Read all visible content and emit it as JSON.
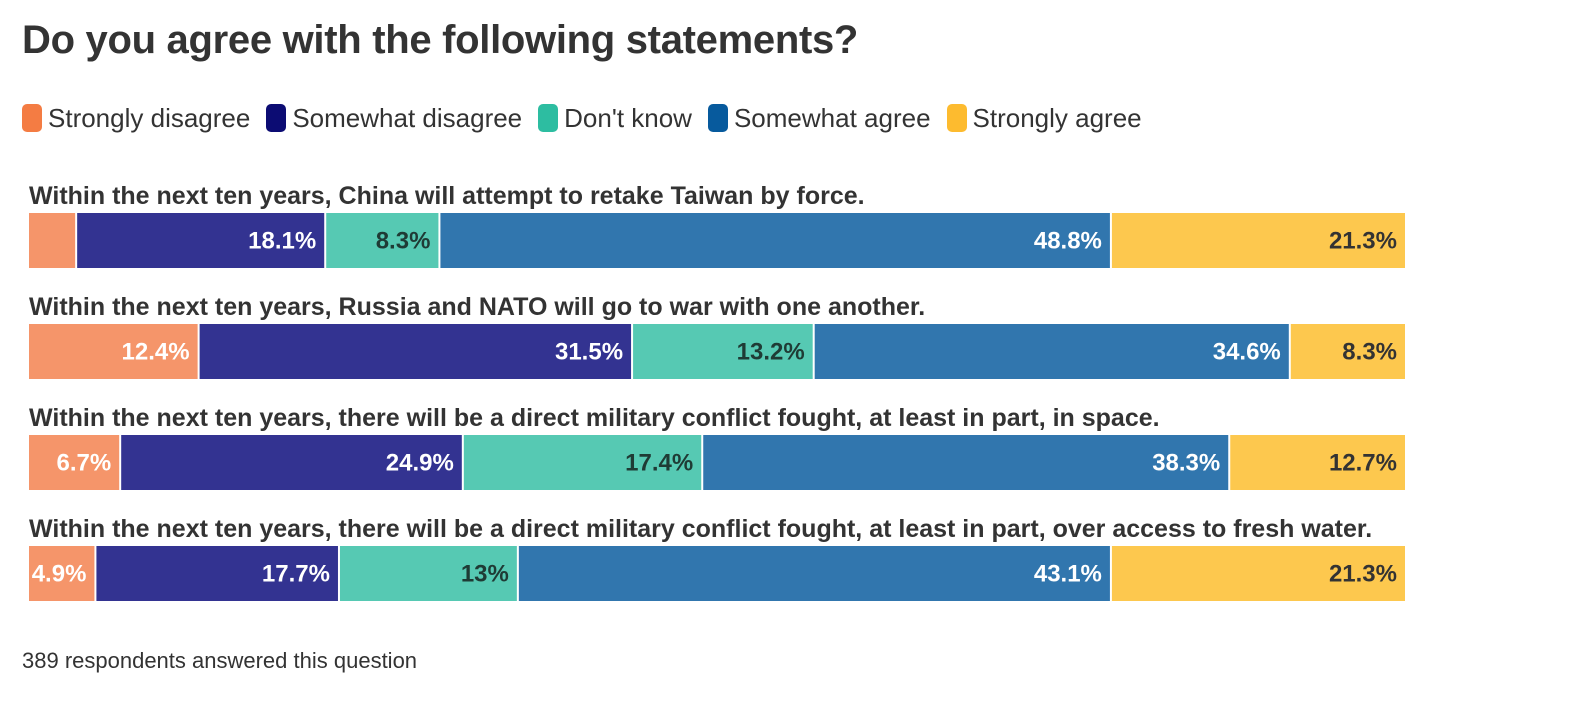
{
  "chart_data": {
    "type": "bar",
    "orientation": "horizontal",
    "stacked": true,
    "title": "Do you agree with the following statements?",
    "legend_position": "top-left",
    "categories": [
      "Within the next ten years, China will attempt to retake Taiwan by force.",
      "Within the next ten years, Russia and NATO will go to war with one another.",
      "Within the next ten years, there will be a direct military conflict fought, at least in part, in space.",
      "Within the next ten years, there will be a direct military conflict fought, at least in part, over access to fresh water."
    ],
    "series": [
      {
        "name": "Strongly disagree",
        "color": "#F5956A",
        "legend_color": "#F47C43",
        "text_color": "#FFFFFF",
        "values": [
          3.5,
          12.4,
          6.7,
          4.9
        ],
        "labels": [
          "",
          "12.4%",
          "6.7%",
          "4.9%"
        ]
      },
      {
        "name": "Somewhat disagree",
        "color": "#333391",
        "legend_color": "#0C0C73",
        "text_color": "#FFFFFF",
        "values": [
          18.1,
          31.5,
          24.9,
          17.7
        ],
        "labels": [
          "18.1%",
          "31.5%",
          "24.9%",
          "17.7%"
        ]
      },
      {
        "name": "Don't know",
        "color": "#56C9B3",
        "legend_color": "#2DBDA1",
        "text_color": "#1F3B35",
        "values": [
          8.3,
          13.2,
          17.4,
          13
        ],
        "labels": [
          "8.3%",
          "13.2%",
          "17.4%",
          "13%"
        ]
      },
      {
        "name": "Somewhat agree",
        "color": "#3176AE",
        "legend_color": "#075A9D",
        "text_color": "#FFFFFF",
        "values": [
          48.8,
          34.6,
          38.3,
          43.1
        ],
        "labels": [
          "48.8%",
          "34.6%",
          "38.3%",
          "43.1%"
        ]
      },
      {
        "name": "Strongly agree",
        "color": "#FDC84E",
        "legend_color": "#FDBB2F",
        "text_color": "#333333",
        "values": [
          21.3,
          8.3,
          12.7,
          21.3
        ],
        "labels": [
          "21.3%",
          "8.3%",
          "12.7%",
          "21.3%"
        ]
      }
    ],
    "xlim": [
      0,
      100
    ],
    "grid": false
  },
  "footnote": "389 respondents answered this question"
}
